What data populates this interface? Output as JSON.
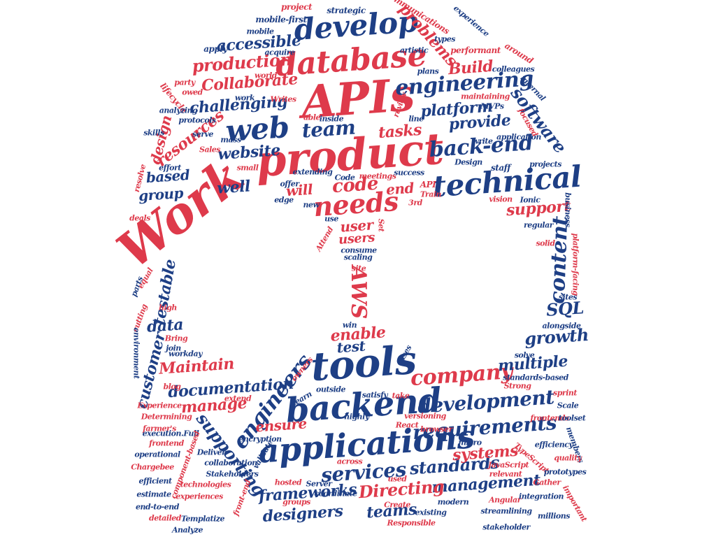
{
  "palette": {
    "blue": "#1e3f85",
    "red": "#de3a4b"
  },
  "words": [
    {
      "text": "Work",
      "color": "red"
    },
    {
      "text": "product",
      "color": "red"
    },
    {
      "text": "APIs",
      "color": "red"
    },
    {
      "text": "database",
      "color": "red"
    },
    {
      "text": "develop",
      "color": "blue"
    },
    {
      "text": "web",
      "color": "blue"
    },
    {
      "text": "technical",
      "color": "blue"
    },
    {
      "text": "needs",
      "color": "red"
    },
    {
      "text": "engineering",
      "color": "blue"
    },
    {
      "text": "team",
      "color": "blue"
    },
    {
      "text": "back-end",
      "color": "blue"
    },
    {
      "text": "code",
      "color": "red"
    },
    {
      "text": "tasks",
      "color": "red"
    },
    {
      "text": "platform",
      "color": "blue"
    },
    {
      "text": "provide",
      "color": "blue"
    },
    {
      "text": "software",
      "color": "blue"
    },
    {
      "text": "production",
      "color": "red"
    },
    {
      "text": "accessible",
      "color": "blue"
    },
    {
      "text": "Collaborate",
      "color": "red"
    },
    {
      "text": "challenging",
      "color": "blue"
    },
    {
      "text": "Build",
      "color": "red"
    },
    {
      "text": "problems",
      "color": "red"
    },
    {
      "text": "website",
      "color": "blue"
    },
    {
      "text": "resources",
      "color": "red"
    },
    {
      "text": "design",
      "color": "red"
    },
    {
      "text": "based",
      "color": "blue"
    },
    {
      "text": "group",
      "color": "blue"
    },
    {
      "text": "well",
      "color": "blue"
    },
    {
      "text": "will",
      "color": "red"
    },
    {
      "text": "end",
      "color": "red"
    },
    {
      "text": "user",
      "color": "red"
    },
    {
      "text": "users",
      "color": "red"
    },
    {
      "text": "support",
      "color": "red"
    },
    {
      "text": "content",
      "color": "blue"
    },
    {
      "text": "testable",
      "color": "blue"
    },
    {
      "text": "data",
      "color": "blue"
    },
    {
      "text": "AWS",
      "color": "red"
    },
    {
      "text": "SQL",
      "color": "blue"
    },
    {
      "text": "growth",
      "color": "blue"
    },
    {
      "text": "tools",
      "color": "blue"
    },
    {
      "text": "backend",
      "color": "blue"
    },
    {
      "text": "applications",
      "color": "blue"
    },
    {
      "text": "company",
      "color": "red"
    },
    {
      "text": "development",
      "color": "blue"
    },
    {
      "text": "requirements",
      "color": "blue"
    },
    {
      "text": "services",
      "color": "blue"
    },
    {
      "text": "engineers",
      "color": "blue"
    },
    {
      "text": "supporting",
      "color": "blue"
    },
    {
      "text": "documentation",
      "color": "blue"
    },
    {
      "text": "Maintain",
      "color": "red"
    },
    {
      "text": "customer",
      "color": "blue"
    },
    {
      "text": "manage",
      "color": "red"
    },
    {
      "text": "ensure",
      "color": "red"
    },
    {
      "text": "multiple",
      "color": "blue"
    },
    {
      "text": "enable",
      "color": "red"
    },
    {
      "text": "test",
      "color": "blue"
    },
    {
      "text": "standards",
      "color": "blue"
    },
    {
      "text": "systems",
      "color": "red"
    },
    {
      "text": "management",
      "color": "blue"
    },
    {
      "text": "Directing",
      "color": "red"
    },
    {
      "text": "frameworks",
      "color": "blue"
    },
    {
      "text": "designers",
      "color": "blue"
    },
    {
      "text": "teams",
      "color": "blue"
    },
    {
      "text": "mobile-first",
      "color": "blue"
    },
    {
      "text": "project",
      "color": "red"
    },
    {
      "text": "strategic",
      "color": "blue"
    },
    {
      "text": "communications",
      "color": "red"
    },
    {
      "text": "experience",
      "color": "blue"
    },
    {
      "text": "types",
      "color": "blue"
    },
    {
      "text": "performant",
      "color": "red"
    },
    {
      "text": "around",
      "color": "red"
    },
    {
      "text": "colleagues",
      "color": "blue"
    },
    {
      "text": "internal",
      "color": "blue"
    },
    {
      "text": "artistic",
      "color": "blue"
    },
    {
      "text": "plans",
      "color": "blue"
    },
    {
      "text": "acquire",
      "color": "blue"
    },
    {
      "text": "mobile",
      "color": "blue"
    },
    {
      "text": "apply",
      "color": "blue"
    },
    {
      "text": "world",
      "color": "red"
    },
    {
      "text": "party",
      "color": "red"
    },
    {
      "text": "owed",
      "color": "red"
    },
    {
      "text": "lifecycle",
      "color": "red"
    },
    {
      "text": "work",
      "color": "blue"
    },
    {
      "text": "Writes",
      "color": "red"
    },
    {
      "text": "analyzing",
      "color": "blue"
    },
    {
      "text": "protocols",
      "color": "blue"
    },
    {
      "text": "skills",
      "color": "blue"
    },
    {
      "text": "serve",
      "color": "blue"
    },
    {
      "text": "mass",
      "color": "blue"
    },
    {
      "text": "Sales",
      "color": "red"
    },
    {
      "text": "effort",
      "color": "blue"
    },
    {
      "text": "resolve",
      "color": "red"
    },
    {
      "text": "staff",
      "color": "blue"
    },
    {
      "text": "small",
      "color": "red"
    },
    {
      "text": "extending",
      "color": "blue"
    },
    {
      "text": "Code",
      "color": "blue"
    },
    {
      "text": "offer",
      "color": "blue"
    },
    {
      "text": "meetings",
      "color": "red"
    },
    {
      "text": "success",
      "color": "blue"
    },
    {
      "text": "Design",
      "color": "blue"
    },
    {
      "text": "projects",
      "color": "blue"
    },
    {
      "text": "write",
      "color": "blue"
    },
    {
      "text": "application",
      "color": "blue"
    },
    {
      "text": "focused",
      "color": "red"
    },
    {
      "text": "MVPs",
      "color": "blue"
    },
    {
      "text": "maintaining",
      "color": "red"
    },
    {
      "text": "line",
      "color": "blue"
    },
    {
      "text": "review",
      "color": "red"
    },
    {
      "text": "inside",
      "color": "blue"
    },
    {
      "text": "able",
      "color": "red"
    },
    {
      "text": "edge",
      "color": "blue"
    },
    {
      "text": "new",
      "color": "blue"
    },
    {
      "text": "API",
      "color": "red"
    },
    {
      "text": "Train",
      "color": "red"
    },
    {
      "text": "3rd",
      "color": "red"
    },
    {
      "text": "vision",
      "color": "red"
    },
    {
      "text": "Ionic",
      "color": "blue"
    },
    {
      "text": "business",
      "color": "blue"
    },
    {
      "text": "regular",
      "color": "blue"
    },
    {
      "text": "use",
      "color": "blue"
    },
    {
      "text": "Set",
      "color": "red"
    },
    {
      "text": "Attend",
      "color": "red"
    },
    {
      "text": "consume",
      "color": "blue"
    },
    {
      "text": "scaling",
      "color": "blue"
    },
    {
      "text": "site",
      "color": "red"
    },
    {
      "text": "solid",
      "color": "red"
    },
    {
      "text": "platform-facing",
      "color": "red"
    },
    {
      "text": "sites",
      "color": "blue"
    },
    {
      "text": "deals",
      "color": "red"
    },
    {
      "text": "parts",
      "color": "blue"
    },
    {
      "text": "equal",
      "color": "red"
    },
    {
      "text": "high",
      "color": "red"
    },
    {
      "text": "cutting",
      "color": "red"
    },
    {
      "text": "Bring",
      "color": "red"
    },
    {
      "text": "join",
      "color": "blue"
    },
    {
      "text": "workday",
      "color": "blue"
    },
    {
      "text": "environment",
      "color": "blue"
    },
    {
      "text": "win",
      "color": "blue"
    },
    {
      "text": "alongside",
      "color": "blue"
    },
    {
      "text": "cases",
      "color": "blue"
    },
    {
      "text": "solve",
      "color": "blue"
    },
    {
      "text": "owners",
      "color": "red"
    },
    {
      "text": "blog",
      "color": "red"
    },
    {
      "text": "extend",
      "color": "red"
    },
    {
      "text": "outside",
      "color": "blue"
    },
    {
      "text": "learn",
      "color": "blue"
    },
    {
      "text": "satisfy",
      "color": "blue"
    },
    {
      "text": "take",
      "color": "red"
    },
    {
      "text": "Strong",
      "color": "red"
    },
    {
      "text": "sprint",
      "color": "red"
    },
    {
      "text": "standards-based",
      "color": "blue"
    },
    {
      "text": "Experience",
      "color": "red"
    },
    {
      "text": "Determining",
      "color": "red"
    },
    {
      "text": "Scale",
      "color": "blue"
    },
    {
      "text": "frontends",
      "color": "red"
    },
    {
      "text": "toolset",
      "color": "blue"
    },
    {
      "text": "farmer's",
      "color": "red"
    },
    {
      "text": "execution.Full",
      "color": "blue"
    },
    {
      "text": "versioning",
      "color": "red"
    },
    {
      "text": "highly",
      "color": "blue"
    },
    {
      "text": "React",
      "color": "red"
    },
    {
      "text": "browser",
      "color": "red"
    },
    {
      "text": "encryption",
      "color": "blue"
    },
    {
      "text": "micro",
      "color": "blue"
    },
    {
      "text": "members",
      "color": "blue"
    },
    {
      "text": "frontend",
      "color": "red"
    },
    {
      "text": "Deliver",
      "color": "blue"
    },
    {
      "text": "operational",
      "color": "blue"
    },
    {
      "text": "component-based",
      "color": "red"
    },
    {
      "text": "Chargebee",
      "color": "red"
    },
    {
      "text": "collaboration",
      "color": "blue"
    },
    {
      "text": "Stakeholders",
      "color": "blue"
    },
    {
      "text": "validate",
      "color": "blue"
    },
    {
      "text": "across",
      "color": "red"
    },
    {
      "text": "efficiency",
      "color": "blue"
    },
    {
      "text": "quality",
      "color": "red"
    },
    {
      "text": "JavaScript",
      "color": "red"
    },
    {
      "text": "TypeScript",
      "color": "red"
    },
    {
      "text": "efficient",
      "color": "blue"
    },
    {
      "text": "technologies",
      "color": "red"
    },
    {
      "text": "hosted",
      "color": "red"
    },
    {
      "text": "Server",
      "color": "blue"
    },
    {
      "text": "relevant",
      "color": "red"
    },
    {
      "text": "Gather",
      "color": "red"
    },
    {
      "text": "prototypes",
      "color": "blue"
    },
    {
      "text": "estimate",
      "color": "blue"
    },
    {
      "text": "experiences",
      "color": "red"
    },
    {
      "text": "front-end",
      "color": "red"
    },
    {
      "text": "groups",
      "color": "red"
    },
    {
      "text": "coordinate",
      "color": "blue"
    },
    {
      "text": "used",
      "color": "red"
    },
    {
      "text": "modern",
      "color": "blue"
    },
    {
      "text": "Angular",
      "color": "red"
    },
    {
      "text": "integration",
      "color": "blue"
    },
    {
      "text": "important",
      "color": "red"
    },
    {
      "text": "end-to-end",
      "color": "blue"
    },
    {
      "text": "Create",
      "color": "red"
    },
    {
      "text": "existing",
      "color": "blue"
    },
    {
      "text": "streamlining",
      "color": "blue"
    },
    {
      "text": "millions",
      "color": "blue"
    },
    {
      "text": "detailed",
      "color": "red"
    },
    {
      "text": "Templatize",
      "color": "blue"
    },
    {
      "text": "Analyze",
      "color": "blue"
    },
    {
      "text": "Responsible",
      "color": "red"
    },
    {
      "text": "stakeholder",
      "color": "blue"
    }
  ]
}
